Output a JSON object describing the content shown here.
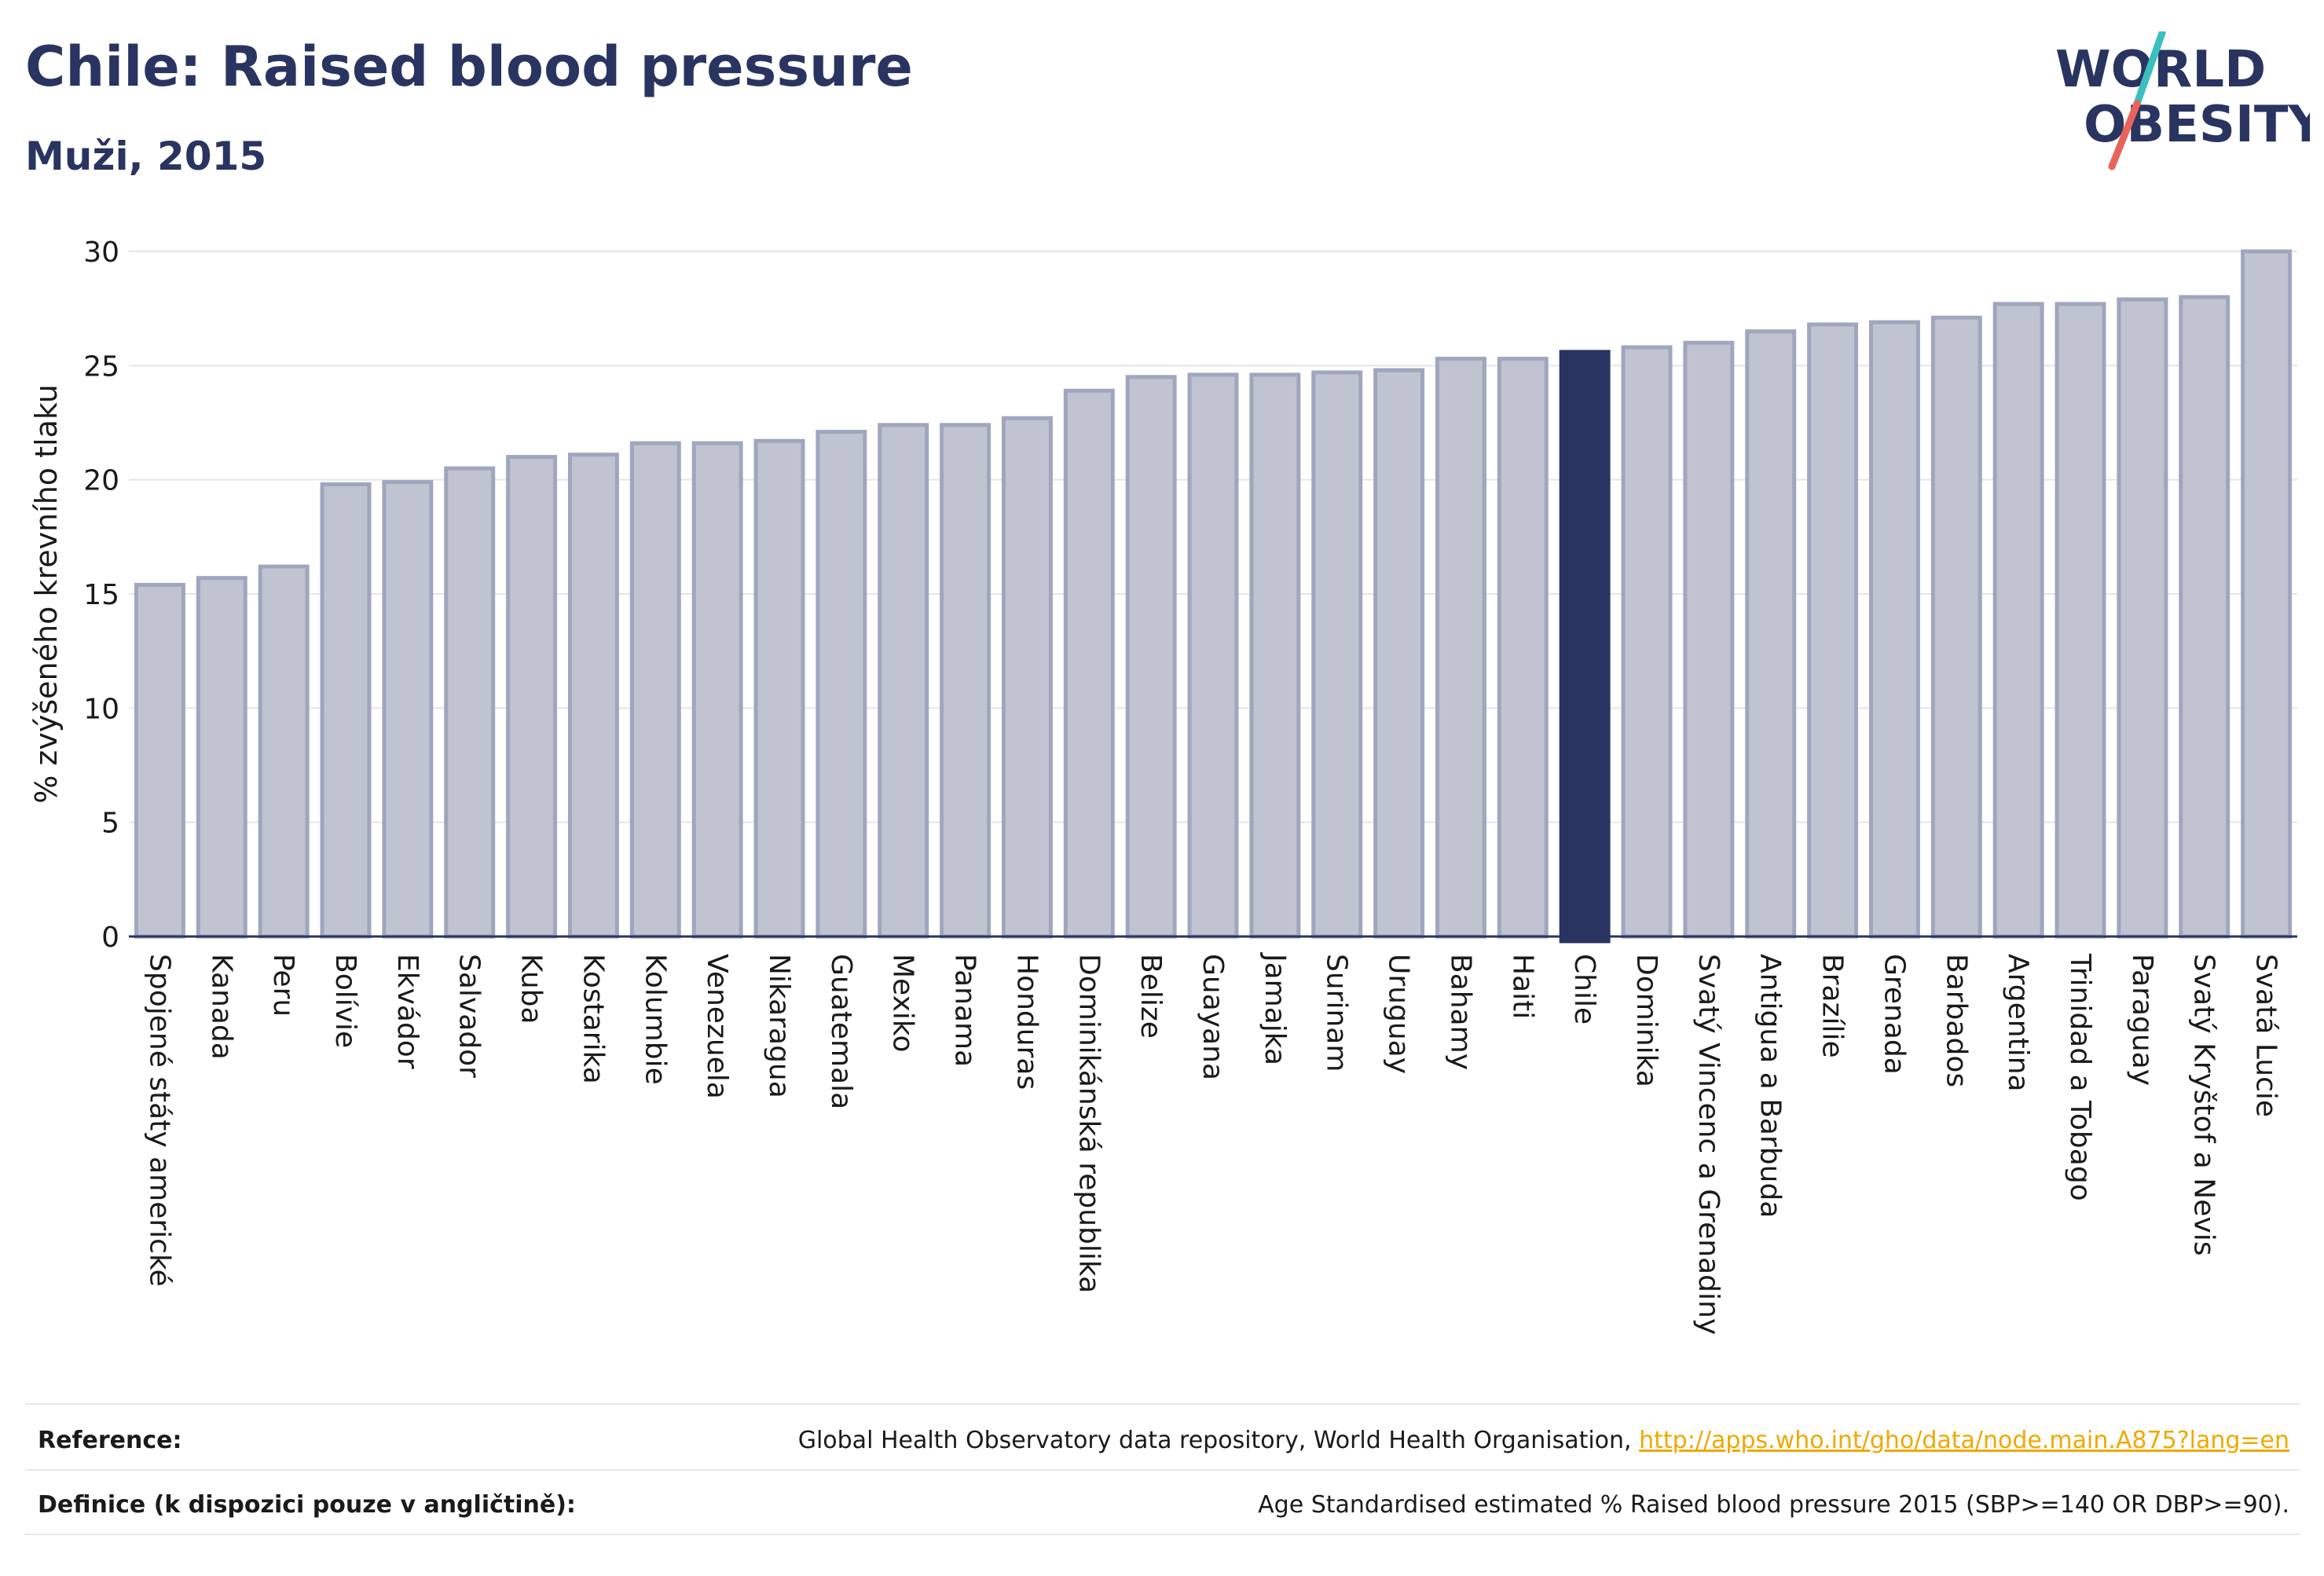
{
  "header": {
    "title": "Chile: Raised blood pressure",
    "subtitle": "Muži, 2015"
  },
  "logo": {
    "line1": "WORLD",
    "line2": "OBESITY",
    "colors": {
      "text": "#2a3461",
      "accent_teal": "#3bbfbf",
      "accent_red": "#e8635a"
    }
  },
  "chart_data": {
    "type": "bar",
    "title": "Chile: Raised blood pressure",
    "subtitle": "Muži, 2015",
    "xlabel": "",
    "ylabel": "% zvýšeného krevního tlaku",
    "ylim": [
      0,
      30
    ],
    "yticks": [
      0,
      5,
      10,
      15,
      20,
      25,
      30
    ],
    "grid": true,
    "highlight": "Chile",
    "colors": {
      "bar": "#c0c4d1",
      "bar_edge": "#9fa6bd",
      "highlight": "#2a3461"
    },
    "categories": [
      "Spojené státy americké",
      "Kanada",
      "Peru",
      "Bolívie",
      "Ekvádor",
      "Salvador",
      "Kuba",
      "Kostarika",
      "Kolumbie",
      "Venezuela",
      "Nikaragua",
      "Guatemala",
      "Mexiko",
      "Panama",
      "Honduras",
      "Dominikánská republika",
      "Belize",
      "Guayana",
      "Jamajka",
      "Surinam",
      "Uruguay",
      "Bahamy",
      "Haiti",
      "Chile",
      "Dominika",
      "Svatý Vincenc a Grenadiny",
      "Antigua a Barbuda",
      "Brazílie",
      "Grenada",
      "Barbados",
      "Argentina",
      "Trinidad a Tobago",
      "Paraguay",
      "Svatý Kryštof a Nevis",
      "Svatá Lucie"
    ],
    "values": [
      15.4,
      15.7,
      16.2,
      19.8,
      19.9,
      20.5,
      21.0,
      21.1,
      21.6,
      21.6,
      21.7,
      22.1,
      22.4,
      22.4,
      22.7,
      23.9,
      24.5,
      24.6,
      24.6,
      24.7,
      24.8,
      25.3,
      25.3,
      25.6,
      25.8,
      26.0,
      26.5,
      26.8,
      26.9,
      27.1,
      27.7,
      27.7,
      27.9,
      28.0,
      30.0
    ]
  },
  "footer": {
    "reference_label": "Reference:",
    "reference_text": "Global Health Observatory data repository, World Health Organisation,",
    "reference_link": "http://apps.who.int/gho/data/node.main.A875?lang=en",
    "definition_label": "Definice (k dispozici pouze v angličtině):",
    "definition_text": "Age Standardised estimated % Raised blood pressure 2015 (SBP>=140 OR DBP>=90)."
  }
}
